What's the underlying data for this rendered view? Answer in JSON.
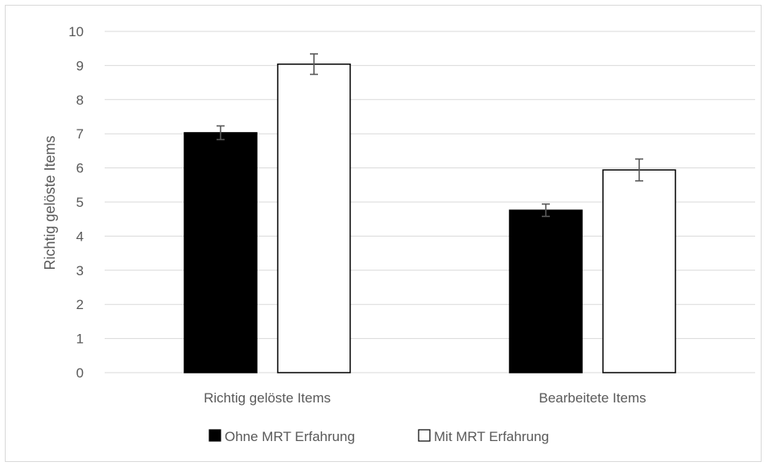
{
  "chart_data": {
    "type": "bar",
    "categories": [
      "Richtig gelöste Items",
      "Bearbeitete Items"
    ],
    "series": [
      {
        "name": "Ohne MRT Erfahrung",
        "values": [
          7.03,
          4.76
        ],
        "errors": [
          0.2,
          0.18
        ],
        "fill": "#000000"
      },
      {
        "name": "Mit MRT Erfahrung",
        "values": [
          9.04,
          5.94
        ],
        "errors": [
          0.3,
          0.32
        ],
        "fill": "#ffffff"
      }
    ],
    "title": "",
    "xlabel": "",
    "ylabel": "Richtig gelöste Items",
    "ylim": [
      0,
      10
    ],
    "yticks": [
      0,
      1,
      2,
      3,
      4,
      5,
      6,
      7,
      8,
      9,
      10
    ],
    "grid": true,
    "legend_position": "bottom"
  },
  "colors": {
    "grid": "#d9d9d9",
    "axis_text": "#595959",
    "bar_outline": "#000000",
    "error_bar": "#595959"
  }
}
